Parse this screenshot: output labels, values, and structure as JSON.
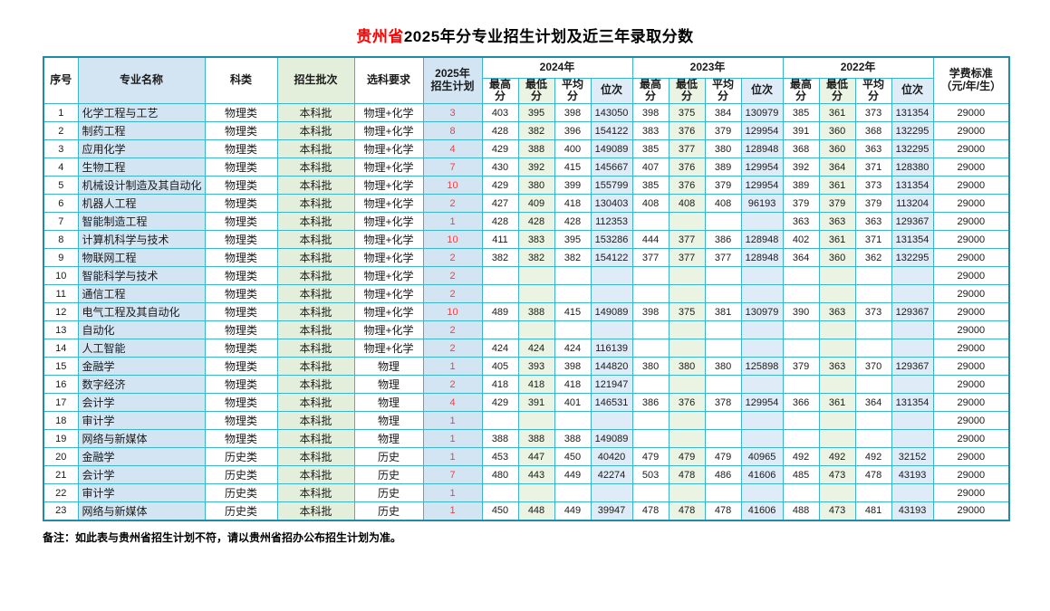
{
  "title": {
    "prefix": "贵州省",
    "rest": "2025年分专业招生计划及近三年录取分数"
  },
  "colors": {
    "title_highlight": "#ff0000",
    "border_inner": "#3cb4cb",
    "border_outer": "#1e8ca6",
    "col_major_bg": "#d3e5f3",
    "col_batch_bg": "#e3efdb",
    "col_plan_bg": "#d3e5f3",
    "col_min_score_bg": "#ebf3e3",
    "col_rank_bg": "#dfebf6",
    "plan_number_color": "#fb3b3b"
  },
  "table": {
    "header": {
      "no": "序号",
      "major": "专业名称",
      "category": "科类",
      "batch": "招生批次",
      "requirement": "选科要求",
      "plan": "2025年\n招生计划",
      "years": [
        "2024年",
        "2023年",
        "2022年"
      ],
      "score_cols": [
        "最高分",
        "最低分",
        "平均分",
        "位次"
      ],
      "fee": "学费标准\n（元/年/生）"
    },
    "rows": [
      {
        "no": "1",
        "major": "化学工程与工艺",
        "category": "物理类",
        "batch": "本科批",
        "requirement": "物理+化学",
        "plan": "3",
        "scores": [
          "403",
          "395",
          "398",
          "143050",
          "398",
          "375",
          "384",
          "130979",
          "385",
          "361",
          "373",
          "131354"
        ],
        "fee": "29000"
      },
      {
        "no": "2",
        "major": "制药工程",
        "category": "物理类",
        "batch": "本科批",
        "requirement": "物理+化学",
        "plan": "8",
        "scores": [
          "428",
          "382",
          "396",
          "154122",
          "383",
          "376",
          "379",
          "129954",
          "391",
          "360",
          "368",
          "132295"
        ],
        "fee": "29000"
      },
      {
        "no": "3",
        "major": "应用化学",
        "category": "物理类",
        "batch": "本科批",
        "requirement": "物理+化学",
        "plan": "4",
        "scores": [
          "429",
          "388",
          "400",
          "149089",
          "385",
          "377",
          "380",
          "128948",
          "368",
          "360",
          "363",
          "132295"
        ],
        "fee": "29000"
      },
      {
        "no": "4",
        "major": "生物工程",
        "category": "物理类",
        "batch": "本科批",
        "requirement": "物理+化学",
        "plan": "7",
        "scores": [
          "430",
          "392",
          "415",
          "145667",
          "407",
          "376",
          "389",
          "129954",
          "392",
          "364",
          "371",
          "128380"
        ],
        "fee": "29000"
      },
      {
        "no": "5",
        "major": "机械设计制造及其自动化",
        "category": "物理类",
        "batch": "本科批",
        "requirement": "物理+化学",
        "plan": "10",
        "scores": [
          "429",
          "380",
          "399",
          "155799",
          "385",
          "376",
          "379",
          "129954",
          "389",
          "361",
          "373",
          "131354"
        ],
        "fee": "29000"
      },
      {
        "no": "6",
        "major": "机器人工程",
        "category": "物理类",
        "batch": "本科批",
        "requirement": "物理+化学",
        "plan": "2",
        "scores": [
          "427",
          "409",
          "418",
          "130403",
          "408",
          "408",
          "408",
          "96193",
          "379",
          "379",
          "379",
          "113204"
        ],
        "fee": "29000"
      },
      {
        "no": "7",
        "major": "智能制造工程",
        "category": "物理类",
        "batch": "本科批",
        "requirement": "物理+化学",
        "plan": "1",
        "scores": [
          "428",
          "428",
          "428",
          "112353",
          "",
          "",
          "",
          "",
          "363",
          "363",
          "363",
          "129367"
        ],
        "fee": "29000"
      },
      {
        "no": "8",
        "major": "计算机科学与技术",
        "category": "物理类",
        "batch": "本科批",
        "requirement": "物理+化学",
        "plan": "10",
        "scores": [
          "411",
          "383",
          "395",
          "153286",
          "444",
          "377",
          "386",
          "128948",
          "402",
          "361",
          "371",
          "131354"
        ],
        "fee": "29000"
      },
      {
        "no": "9",
        "major": "物联网工程",
        "category": "物理类",
        "batch": "本科批",
        "requirement": "物理+化学",
        "plan": "2",
        "scores": [
          "382",
          "382",
          "382",
          "154122",
          "377",
          "377",
          "377",
          "128948",
          "364",
          "360",
          "362",
          "132295"
        ],
        "fee": "29000"
      },
      {
        "no": "10",
        "major": "智能科学与技术",
        "category": "物理类",
        "batch": "本科批",
        "requirement": "物理+化学",
        "plan": "2",
        "scores": [
          "",
          "",
          "",
          "",
          "",
          "",
          "",
          "",
          "",
          "",
          "",
          ""
        ],
        "fee": "29000"
      },
      {
        "no": "11",
        "major": "通信工程",
        "category": "物理类",
        "batch": "本科批",
        "requirement": "物理+化学",
        "plan": "2",
        "scores": [
          "",
          "",
          "",
          "",
          "",
          "",
          "",
          "",
          "",
          "",
          "",
          ""
        ],
        "fee": "29000"
      },
      {
        "no": "12",
        "major": "电气工程及其自动化",
        "category": "物理类",
        "batch": "本科批",
        "requirement": "物理+化学",
        "plan": "10",
        "scores": [
          "489",
          "388",
          "415",
          "149089",
          "398",
          "375",
          "381",
          "130979",
          "390",
          "363",
          "373",
          "129367"
        ],
        "fee": "29000"
      },
      {
        "no": "13",
        "major": "自动化",
        "category": "物理类",
        "batch": "本科批",
        "requirement": "物理+化学",
        "plan": "2",
        "scores": [
          "",
          "",
          "",
          "",
          "",
          "",
          "",
          "",
          "",
          "",
          "",
          ""
        ],
        "fee": "29000"
      },
      {
        "no": "14",
        "major": "人工智能",
        "category": "物理类",
        "batch": "本科批",
        "requirement": "物理+化学",
        "plan": "2",
        "scores": [
          "424",
          "424",
          "424",
          "116139",
          "",
          "",
          "",
          "",
          "",
          "",
          "",
          ""
        ],
        "fee": "29000"
      },
      {
        "no": "15",
        "major": "金融学",
        "category": "物理类",
        "batch": "本科批",
        "requirement": "物理",
        "plan": "1",
        "scores": [
          "405",
          "393",
          "398",
          "144820",
          "380",
          "380",
          "380",
          "125898",
          "379",
          "363",
          "370",
          "129367"
        ],
        "fee": "29000"
      },
      {
        "no": "16",
        "major": "数字经济",
        "category": "物理类",
        "batch": "本科批",
        "requirement": "物理",
        "plan": "2",
        "scores": [
          "418",
          "418",
          "418",
          "121947",
          "",
          "",
          "",
          "",
          "",
          "",
          "",
          ""
        ],
        "fee": "29000"
      },
      {
        "no": "17",
        "major": "会计学",
        "category": "物理类",
        "batch": "本科批",
        "requirement": "物理",
        "plan": "4",
        "scores": [
          "429",
          "391",
          "401",
          "146531",
          "386",
          "376",
          "378",
          "129954",
          "366",
          "361",
          "364",
          "131354"
        ],
        "fee": "29000"
      },
      {
        "no": "18",
        "major": "审计学",
        "category": "物理类",
        "batch": "本科批",
        "requirement": "物理",
        "plan": "1",
        "scores": [
          "",
          "",
          "",
          "",
          "",
          "",
          "",
          "",
          "",
          "",
          "",
          ""
        ],
        "fee": "29000"
      },
      {
        "no": "19",
        "major": "网络与新媒体",
        "category": "物理类",
        "batch": "本科批",
        "requirement": "物理",
        "plan": "1",
        "scores": [
          "388",
          "388",
          "388",
          "149089",
          "",
          "",
          "",
          "",
          "",
          "",
          "",
          ""
        ],
        "fee": "29000"
      },
      {
        "no": "20",
        "major": "金融学",
        "category": "历史类",
        "batch": "本科批",
        "requirement": "历史",
        "plan": "1",
        "scores": [
          "453",
          "447",
          "450",
          "40420",
          "479",
          "479",
          "479",
          "40965",
          "492",
          "492",
          "492",
          "32152"
        ],
        "fee": "29000"
      },
      {
        "no": "21",
        "major": "会计学",
        "category": "历史类",
        "batch": "本科批",
        "requirement": "历史",
        "plan": "7",
        "scores": [
          "480",
          "443",
          "449",
          "42274",
          "503",
          "478",
          "486",
          "41606",
          "485",
          "473",
          "478",
          "43193"
        ],
        "fee": "29000"
      },
      {
        "no": "22",
        "major": "审计学",
        "category": "历史类",
        "batch": "本科批",
        "requirement": "历史",
        "plan": "1",
        "scores": [
          "",
          "",
          "",
          "",
          "",
          "",
          "",
          "",
          "",
          "",
          "",
          ""
        ],
        "fee": "29000"
      },
      {
        "no": "23",
        "major": "网络与新媒体",
        "category": "历史类",
        "batch": "本科批",
        "requirement": "历史",
        "plan": "1",
        "scores": [
          "450",
          "448",
          "449",
          "39947",
          "478",
          "478",
          "478",
          "41606",
          "488",
          "473",
          "481",
          "43193"
        ],
        "fee": "29000"
      }
    ]
  },
  "note": "备注：如此表与贵州省招生计划不符，请以贵州省招办公布招生计划为准。"
}
